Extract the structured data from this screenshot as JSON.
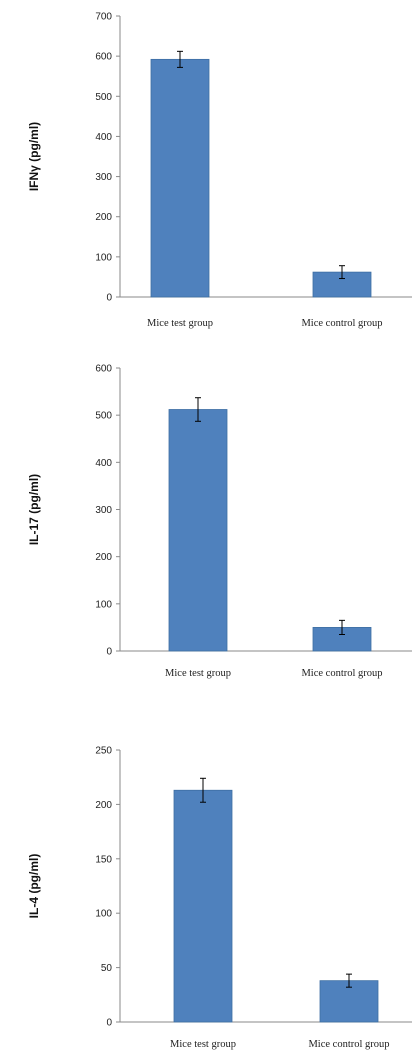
{
  "chart_data": [
    {
      "type": "bar",
      "categories": [
        "Mice test group",
        "Mice control group"
      ],
      "values": [
        592,
        62
      ],
      "errors": [
        20,
        16
      ],
      "ylabel": "IFNγ (pg/ml)",
      "ylim": [
        0,
        700
      ],
      "yticks": [
        0,
        100,
        200,
        300,
        400,
        500,
        600,
        700
      ],
      "bar_color": "#4f81bd",
      "grid": false
    },
    {
      "type": "bar",
      "categories": [
        "Mice test group",
        "Mice control group"
      ],
      "values": [
        512,
        50
      ],
      "errors": [
        25,
        15
      ],
      "ylabel": "IL-17 (pg/ml)",
      "ylim": [
        0,
        600
      ],
      "yticks": [
        0,
        100,
        200,
        300,
        400,
        500,
        600
      ],
      "bar_color": "#4f81bd",
      "grid": false
    },
    {
      "type": "bar",
      "categories": [
        "Mice test group",
        "Mice control group"
      ],
      "values": [
        213,
        38
      ],
      "errors": [
        11,
        6
      ],
      "ylabel": "IL-4 (pg/ml)",
      "ylim": [
        0,
        250
      ],
      "yticks": [
        0,
        50,
        100,
        150,
        200,
        250
      ],
      "bar_color": "#4f81bd",
      "grid": false
    }
  ]
}
